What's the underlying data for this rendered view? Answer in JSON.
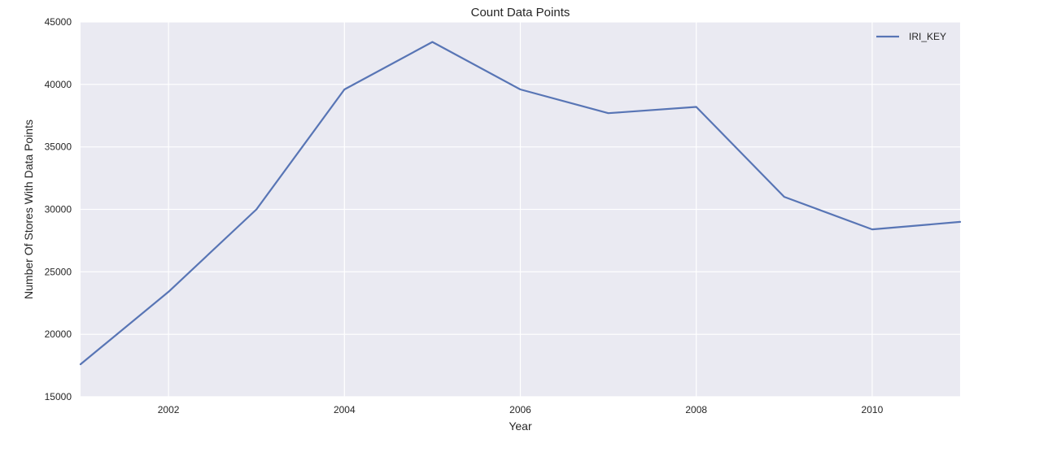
{
  "chart_data": {
    "type": "line",
    "title": "Count Data Points",
    "xlabel": "Year",
    "ylabel": "Number Of Stores With Data Points",
    "x": [
      2001,
      2002,
      2003,
      2004,
      2005,
      2006,
      2007,
      2008,
      2009,
      2010,
      2011
    ],
    "series": [
      {
        "name": "IRI_KEY",
        "values": [
          17600,
          23400,
          30000,
          39600,
          43400,
          39600,
          37700,
          38200,
          31000,
          28400,
          29000
        ],
        "color": "#5875b5"
      }
    ],
    "xlim": [
      2001,
      2011
    ],
    "ylim": [
      15000,
      45000
    ],
    "x_ticks": [
      "2002",
      "2004",
      "2006",
      "2008",
      "2010"
    ],
    "y_ticks": [
      "15000",
      "20000",
      "25000",
      "30000",
      "35000",
      "40000",
      "45000"
    ],
    "grid": true,
    "legend_position": "top-right",
    "background_color": "#eaeaf2",
    "grid_color": "#ffffff"
  }
}
